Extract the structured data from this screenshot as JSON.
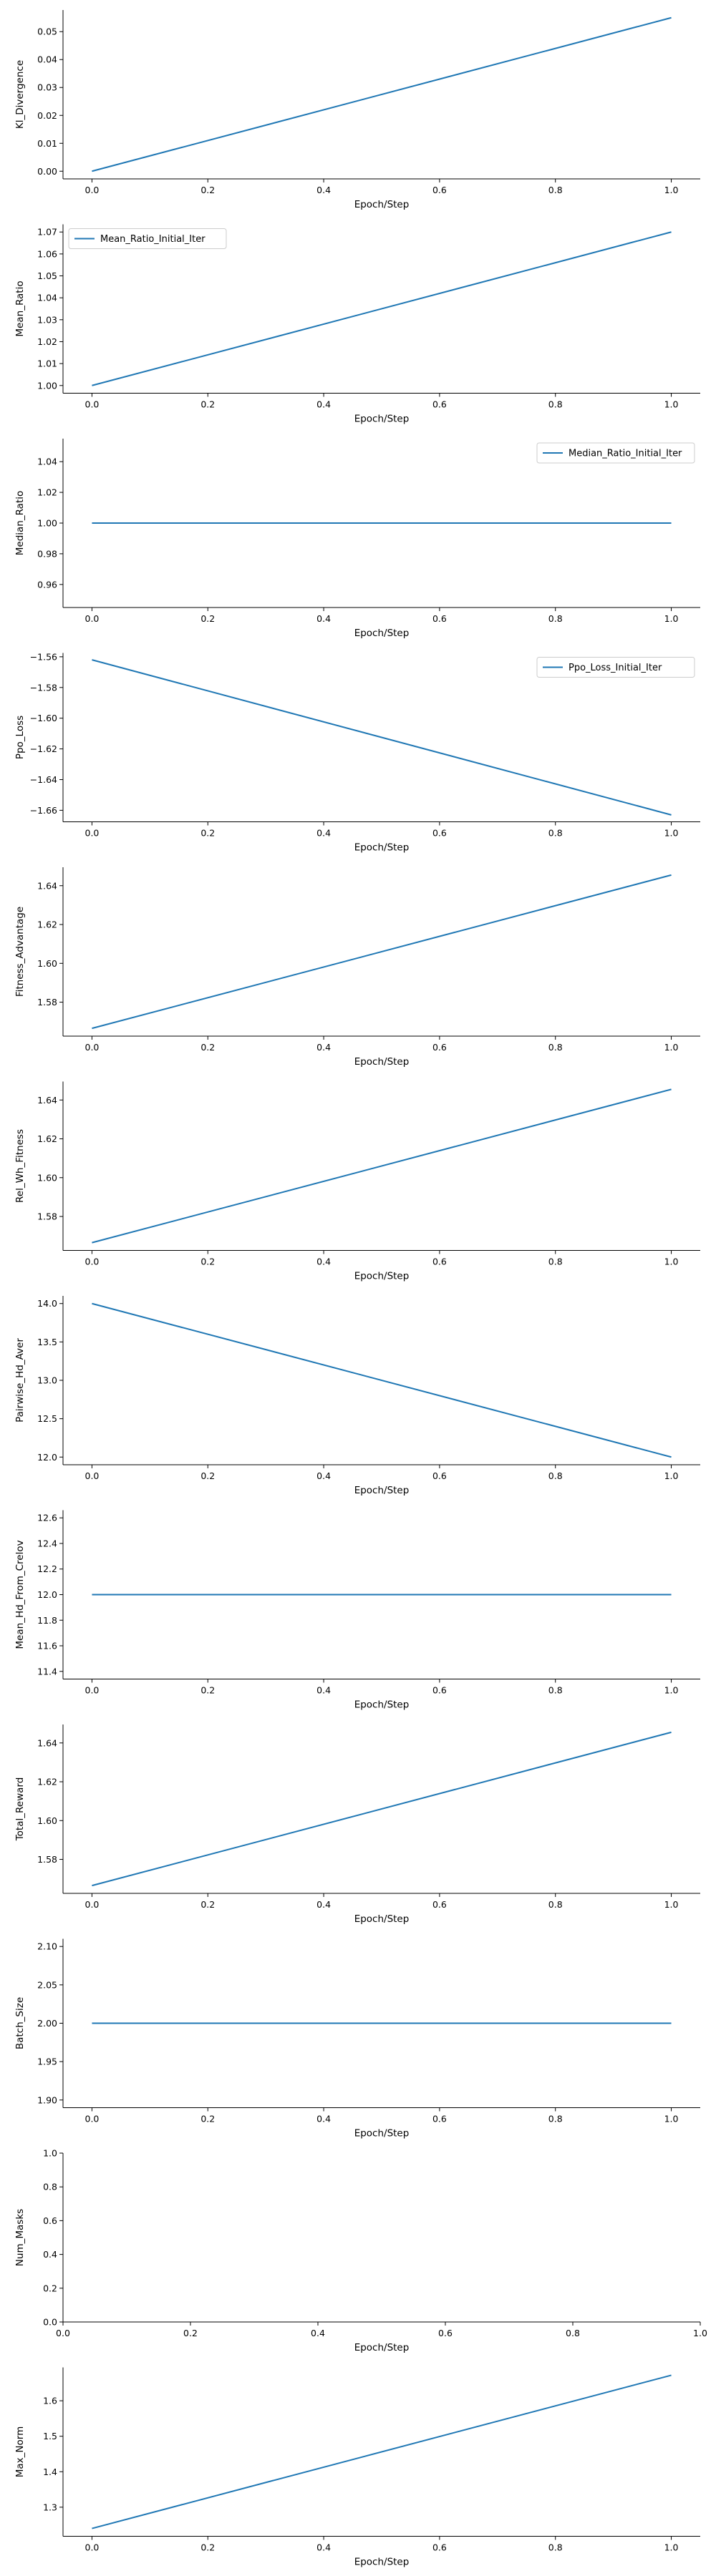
{
  "colors": {
    "line": "#1f77b4",
    "axis": "#000000",
    "legend_border": "#cccccc",
    "background": "#ffffff"
  },
  "chart_data": [
    {
      "type": "line",
      "ylabel": "Kl_Divergence",
      "xlabel": "Epoch/Step",
      "xlim": [
        -0.05,
        1.05
      ],
      "ylim": [
        -0.00275,
        0.05775
      ],
      "yticks": [
        0.0,
        0.01,
        0.02,
        0.03,
        0.04,
        0.05
      ],
      "ytick_labels": [
        "0.00",
        "0.01",
        "0.02",
        "0.03",
        "0.04",
        "0.05"
      ],
      "xticks": [
        0.0,
        0.2,
        0.4,
        0.6,
        0.8,
        1.0
      ],
      "xtick_labels": [
        "0.0",
        "0.2",
        "0.4",
        "0.6",
        "0.8",
        "1.0"
      ],
      "series": [
        {
          "x": [
            0.0,
            1.0
          ],
          "y": [
            0.0,
            0.055
          ]
        }
      ],
      "grid": false
    },
    {
      "type": "line",
      "ylabel": "Mean_Ratio",
      "xlabel": "Epoch/Step",
      "xlim": [
        -0.05,
        1.05
      ],
      "ylim": [
        0.9965,
        1.0735
      ],
      "yticks": [
        1.0,
        1.01,
        1.02,
        1.03,
        1.04,
        1.05,
        1.06,
        1.07
      ],
      "ytick_labels": [
        "1.00",
        "1.01",
        "1.02",
        "1.03",
        "1.04",
        "1.05",
        "1.06",
        "1.07"
      ],
      "xticks": [
        0.0,
        0.2,
        0.4,
        0.6,
        0.8,
        1.0
      ],
      "xtick_labels": [
        "0.0",
        "0.2",
        "0.4",
        "0.6",
        "0.8",
        "1.0"
      ],
      "series": [
        {
          "name": "Mean_Ratio_Initial_Iter",
          "x": [
            0.0,
            1.0
          ],
          "y": [
            1.0,
            1.07
          ]
        }
      ],
      "legend": "upper left",
      "grid": false
    },
    {
      "type": "line",
      "ylabel": "Median_Ratio",
      "xlabel": "Epoch/Step",
      "xlim": [
        -0.05,
        1.05
      ],
      "ylim": [
        0.945,
        1.055
      ],
      "yticks": [
        0.96,
        0.98,
        1.0,
        1.02,
        1.04
      ],
      "ytick_labels": [
        "0.96",
        "0.98",
        "1.00",
        "1.02",
        "1.04"
      ],
      "xticks": [
        0.0,
        0.2,
        0.4,
        0.6,
        0.8,
        1.0
      ],
      "xtick_labels": [
        "0.0",
        "0.2",
        "0.4",
        "0.6",
        "0.8",
        "1.0"
      ],
      "series": [
        {
          "name": "Median_Ratio_Initial_Iter",
          "x": [
            0.0,
            1.0
          ],
          "y": [
            1.0,
            1.0
          ]
        }
      ],
      "legend": "upper right",
      "grid": false
    },
    {
      "type": "line",
      "ylabel": "Ppo_Loss",
      "xlabel": "Epoch/Step",
      "xlim": [
        -0.05,
        1.05
      ],
      "ylim": [
        -1.6675,
        -1.5575
      ],
      "yticks": [
        -1.66,
        -1.64,
        -1.62,
        -1.6,
        -1.58,
        -1.56
      ],
      "ytick_labels": [
        "−1.66",
        "−1.64",
        "−1.62",
        "−1.60",
        "−1.58",
        "−1.56"
      ],
      "xticks": [
        0.0,
        0.2,
        0.4,
        0.6,
        0.8,
        1.0
      ],
      "xtick_labels": [
        "0.0",
        "0.2",
        "0.4",
        "0.6",
        "0.8",
        "1.0"
      ],
      "series": [
        {
          "name": "Ppo_Loss_Initial_Iter",
          "x": [
            0.0,
            1.0
          ],
          "y": [
            -1.562,
            -1.663
          ]
        }
      ],
      "legend": "upper right",
      "grid": false
    },
    {
      "type": "line",
      "ylabel": "Fitness_Advantage",
      "xlabel": "Epoch/Step",
      "xlim": [
        -0.05,
        1.05
      ],
      "ylim": [
        1.5625,
        1.6495
      ],
      "yticks": [
        1.58,
        1.6,
        1.62,
        1.64
      ],
      "ytick_labels": [
        "1.58",
        "1.60",
        "1.62",
        "1.64"
      ],
      "xticks": [
        0.0,
        0.2,
        0.4,
        0.6,
        0.8,
        1.0
      ],
      "xtick_labels": [
        "0.0",
        "0.2",
        "0.4",
        "0.6",
        "0.8",
        "1.0"
      ],
      "series": [
        {
          "x": [
            0.0,
            1.0
          ],
          "y": [
            1.5665,
            1.6455
          ]
        }
      ],
      "grid": false
    },
    {
      "type": "line",
      "ylabel": "Rel_Wh_Fitness",
      "xlabel": "Epoch/Step",
      "xlim": [
        -0.05,
        1.05
      ],
      "ylim": [
        1.5625,
        1.6495
      ],
      "yticks": [
        1.58,
        1.6,
        1.62,
        1.64
      ],
      "ytick_labels": [
        "1.58",
        "1.60",
        "1.62",
        "1.64"
      ],
      "xticks": [
        0.0,
        0.2,
        0.4,
        0.6,
        0.8,
        1.0
      ],
      "xtick_labels": [
        "0.0",
        "0.2",
        "0.4",
        "0.6",
        "0.8",
        "1.0"
      ],
      "series": [
        {
          "x": [
            0.0,
            1.0
          ],
          "y": [
            1.5665,
            1.6455
          ]
        }
      ],
      "grid": false
    },
    {
      "type": "line",
      "ylabel": "Pairwise_Hd_Aver",
      "xlabel": "Epoch/Step",
      "xlim": [
        -0.05,
        1.05
      ],
      "ylim": [
        11.9,
        14.1
      ],
      "yticks": [
        12.0,
        12.5,
        13.0,
        13.5,
        14.0
      ],
      "ytick_labels": [
        "12.0",
        "12.5",
        "13.0",
        "13.5",
        "14.0"
      ],
      "xticks": [
        0.0,
        0.2,
        0.4,
        0.6,
        0.8,
        1.0
      ],
      "xtick_labels": [
        "0.0",
        "0.2",
        "0.4",
        "0.6",
        "0.8",
        "1.0"
      ],
      "series": [
        {
          "x": [
            0.0,
            1.0
          ],
          "y": [
            14.0,
            12.0
          ]
        }
      ],
      "grid": false
    },
    {
      "type": "line",
      "ylabel": "Mean_Hd_From_Crelov",
      "xlabel": "Epoch/Step",
      "xlim": [
        -0.05,
        1.05
      ],
      "ylim": [
        11.34,
        12.66
      ],
      "yticks": [
        11.4,
        11.6,
        11.8,
        12.0,
        12.2,
        12.4,
        12.6
      ],
      "ytick_labels": [
        "11.4",
        "11.6",
        "11.8",
        "12.0",
        "12.2",
        "12.4",
        "12.6"
      ],
      "xticks": [
        0.0,
        0.2,
        0.4,
        0.6,
        0.8,
        1.0
      ],
      "xtick_labels": [
        "0.0",
        "0.2",
        "0.4",
        "0.6",
        "0.8",
        "1.0"
      ],
      "series": [
        {
          "x": [
            0.0,
            1.0
          ],
          "y": [
            12.0,
            12.0
          ]
        }
      ],
      "grid": false
    },
    {
      "type": "line",
      "ylabel": "Total_Reward",
      "xlabel": "Epoch/Step",
      "xlim": [
        -0.05,
        1.05
      ],
      "ylim": [
        1.5625,
        1.6495
      ],
      "yticks": [
        1.58,
        1.6,
        1.62,
        1.64
      ],
      "ytick_labels": [
        "1.58",
        "1.60",
        "1.62",
        "1.64"
      ],
      "xticks": [
        0.0,
        0.2,
        0.4,
        0.6,
        0.8,
        1.0
      ],
      "xtick_labels": [
        "0.0",
        "0.2",
        "0.4",
        "0.6",
        "0.8",
        "1.0"
      ],
      "series": [
        {
          "x": [
            0.0,
            1.0
          ],
          "y": [
            1.5665,
            1.6455
          ]
        }
      ],
      "grid": false
    },
    {
      "type": "line",
      "ylabel": "Batch_Size",
      "xlabel": "Epoch/Step",
      "xlim": [
        -0.05,
        1.05
      ],
      "ylim": [
        1.89,
        2.11
      ],
      "yticks": [
        1.9,
        1.95,
        2.0,
        2.05,
        2.1
      ],
      "ytick_labels": [
        "1.90",
        "1.95",
        "2.00",
        "2.05",
        "2.10"
      ],
      "xticks": [
        0.0,
        0.2,
        0.4,
        0.6,
        0.8,
        1.0
      ],
      "xtick_labels": [
        "0.0",
        "0.2",
        "0.4",
        "0.6",
        "0.8",
        "1.0"
      ],
      "series": [
        {
          "x": [
            0.0,
            1.0
          ],
          "y": [
            2.0,
            2.0
          ]
        }
      ],
      "grid": false
    },
    {
      "type": "line",
      "ylabel": "Num_Masks",
      "xlabel": "Epoch/Step",
      "xlim": [
        0.0,
        1.0
      ],
      "ylim": [
        0.0,
        1.0
      ],
      "yticks": [
        0.0,
        0.2,
        0.4,
        0.6,
        0.8,
        1.0
      ],
      "ytick_labels": [
        "0.0",
        "0.2",
        "0.4",
        "0.6",
        "0.8",
        "1.0"
      ],
      "xticks": [
        0.0,
        0.2,
        0.4,
        0.6,
        0.8,
        1.0
      ],
      "xtick_labels": [
        "0.0",
        "0.2",
        "0.4",
        "0.6",
        "0.8",
        "1.0"
      ],
      "series": [],
      "grid": false
    },
    {
      "type": "line",
      "ylabel": "Max_Norm",
      "xlabel": "Epoch/Step",
      "xlim": [
        -0.05,
        1.05
      ],
      "ylim": [
        1.218,
        1.694
      ],
      "yticks": [
        1.3,
        1.4,
        1.5,
        1.6
      ],
      "ytick_labels": [
        "1.3",
        "1.4",
        "1.5",
        "1.6"
      ],
      "xticks": [
        0.0,
        0.2,
        0.4,
        0.6,
        0.8,
        1.0
      ],
      "xtick_labels": [
        "0.0",
        "0.2",
        "0.4",
        "0.6",
        "0.8",
        "1.0"
      ],
      "series": [
        {
          "x": [
            0.0,
            1.0
          ],
          "y": [
            1.24,
            1.672
          ]
        }
      ],
      "grid": false
    }
  ]
}
